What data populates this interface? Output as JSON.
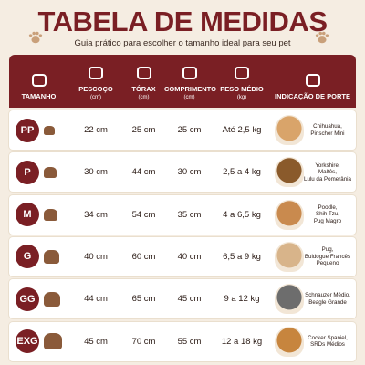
{
  "header": {
    "title": "TABELA DE MEDIDAS",
    "subtitle": "Guia prático para escolher o tamanho ideal para seu pet"
  },
  "table": {
    "columns": [
      {
        "label": "TAMANHO"
      },
      {
        "label": "PESCOÇO",
        "unit": "(cm)"
      },
      {
        "label": "TÓRAX",
        "unit": "(cm)"
      },
      {
        "label": "COMPRIMENTO",
        "unit": "(cm)"
      },
      {
        "label": "PESO MÉDIO",
        "unit": "(kg)"
      },
      {
        "label": "INDICAÇÃO DE PORTE"
      }
    ],
    "rows": [
      {
        "size": "PP",
        "neck": "22 cm",
        "chest": "25 cm",
        "length": "25 cm",
        "weight": "Até 2,5 kg",
        "breeds": [
          "Chihuahua,",
          "Pinscher Mini"
        ]
      },
      {
        "size": "P",
        "neck": "30 cm",
        "chest": "44 cm",
        "length": "30 cm",
        "weight": "2,5 a 4 kg",
        "breeds": [
          "Yorkshire,",
          "Maltês,",
          "Lulu da Pomerânia"
        ]
      },
      {
        "size": "M",
        "neck": "34 cm",
        "chest": "54 cm",
        "length": "35 cm",
        "weight": "4 a 6,5 kg",
        "breeds": [
          "Poodle,",
          "Shih Tzu,",
          "Pug Magro"
        ]
      },
      {
        "size": "G",
        "neck": "40 cm",
        "chest": "60 cm",
        "length": "40 cm",
        "weight": "6,5 a 9 kg",
        "breeds": [
          "Pug,",
          "Buldogue Francês",
          "Pequeno"
        ]
      },
      {
        "size": "GG",
        "neck": "44 cm",
        "chest": "65 cm",
        "length": "45 cm",
        "weight": "9 a 12 kg",
        "breeds": [
          "Schnauzer Médio,",
          "Beagle Grande"
        ]
      },
      {
        "size": "EXG",
        "neck": "45 cm",
        "chest": "70 cm",
        "length": "55 cm",
        "weight": "12 a 18 kg",
        "breeds": [
          "Cocker Spaniel,",
          "SRDs Médios"
        ]
      }
    ]
  }
}
